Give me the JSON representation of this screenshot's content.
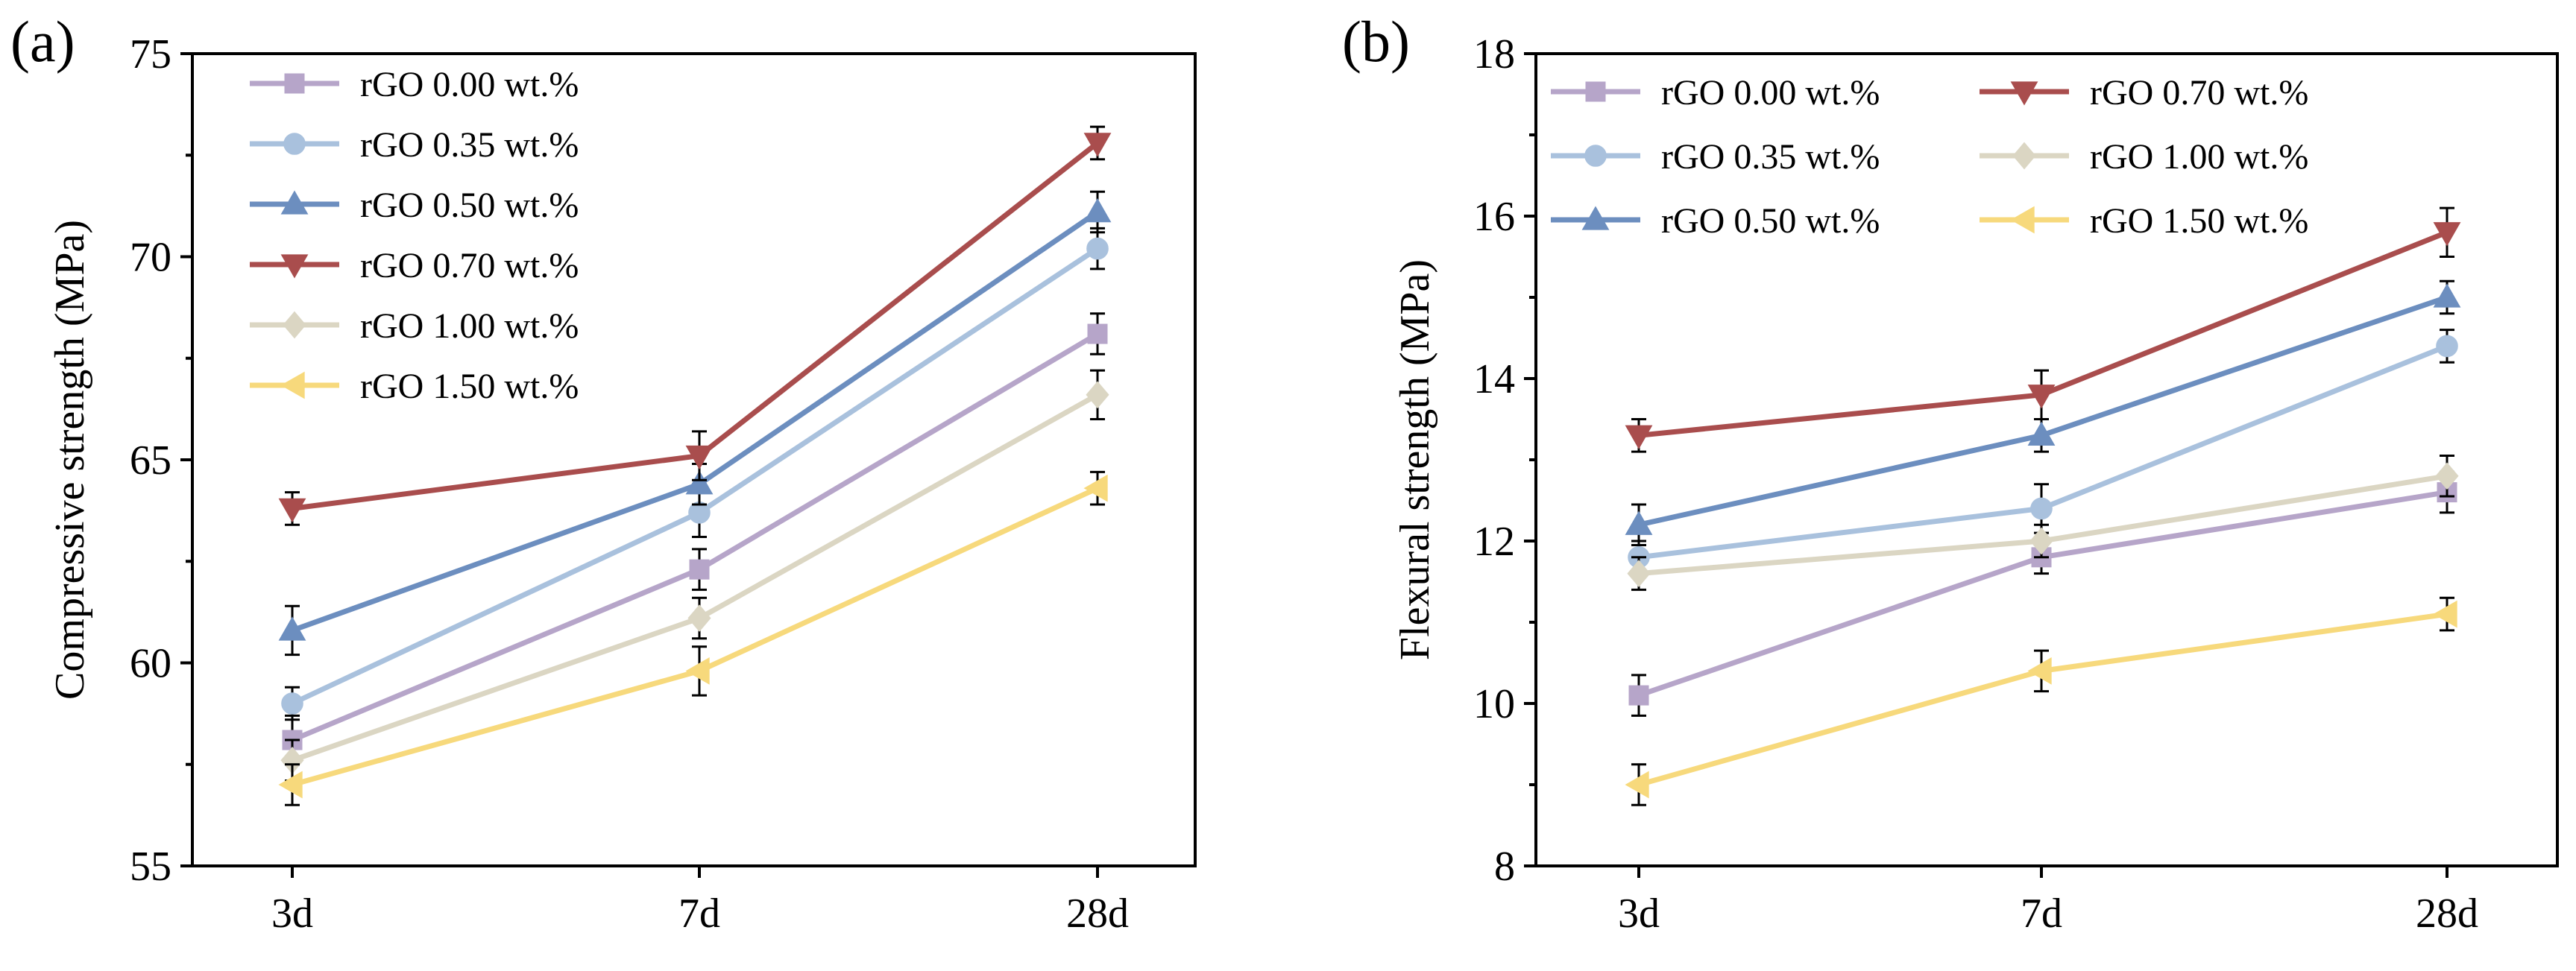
{
  "chart_data": [
    {
      "type": "line",
      "panel_label": "(a)",
      "categories": [
        "3d",
        "7d",
        "28d"
      ],
      "ylabel": "Compressive strength (MPa)",
      "xlabel": "",
      "ylim": [
        55,
        75
      ],
      "yticks": [
        55,
        60,
        65,
        70,
        75
      ],
      "legend_position": "top-left",
      "series": [
        {
          "name": "rGO 0.00 wt.%",
          "color": "#b6a5c9",
          "marker": "square",
          "values": [
            58.1,
            62.3,
            68.1
          ],
          "errors": [
            0.6,
            0.5,
            0.5
          ]
        },
        {
          "name": "rGO 0.35 wt.%",
          "color": "#a9c1dd",
          "marker": "circle",
          "values": [
            59.0,
            63.7,
            70.2
          ],
          "errors": [
            0.4,
            0.6,
            0.5
          ]
        },
        {
          "name": "rGO 0.50 wt.%",
          "color": "#6c8ebf",
          "marker": "triangle-up",
          "values": [
            60.8,
            64.4,
            71.1
          ],
          "errors": [
            0.6,
            0.5,
            0.5
          ]
        },
        {
          "name": "rGO 0.70 wt.%",
          "color": "#a94d4d",
          "marker": "triangle-down",
          "values": [
            63.8,
            65.1,
            72.8
          ],
          "errors": [
            0.4,
            0.6,
            0.4
          ]
        },
        {
          "name": "rGO 1.00 wt.%",
          "color": "#dbd6c3",
          "marker": "diamond",
          "values": [
            57.6,
            61.1,
            66.6
          ],
          "errors": [
            0.5,
            0.5,
            0.6
          ]
        },
        {
          "name": "rGO 1.50 wt.%",
          "color": "#f7d97c",
          "marker": "triangle-left",
          "values": [
            57.0,
            59.8,
            64.3
          ],
          "errors": [
            0.5,
            0.6,
            0.4
          ]
        }
      ]
    },
    {
      "type": "line",
      "panel_label": "(b)",
      "categories": [
        "3d",
        "7d",
        "28d"
      ],
      "ylabel": "Flexural strength (MPa)",
      "xlabel": "",
      "ylim": [
        8,
        18
      ],
      "yticks": [
        8,
        10,
        12,
        14,
        16,
        18
      ],
      "legend_position": "top-left",
      "series": [
        {
          "name": "rGO 0.00 wt.%",
          "color": "#b6a5c9",
          "marker": "square",
          "values": [
            10.1,
            11.8,
            12.6
          ],
          "errors": [
            0.25,
            0.2,
            0.25
          ]
        },
        {
          "name": "rGO 0.35 wt.%",
          "color": "#a9c1dd",
          "marker": "circle",
          "values": [
            11.8,
            12.4,
            14.4
          ],
          "errors": [
            0.2,
            0.3,
            0.2
          ]
        },
        {
          "name": "rGO 0.50 wt.%",
          "color": "#6c8ebf",
          "marker": "triangle-up",
          "values": [
            12.2,
            13.3,
            15.0
          ],
          "errors": [
            0.25,
            0.2,
            0.2
          ]
        },
        {
          "name": "rGO 0.70 wt.%",
          "color": "#a94d4d",
          "marker": "triangle-down",
          "values": [
            13.3,
            13.8,
            15.8
          ],
          "errors": [
            0.2,
            0.3,
            0.3
          ]
        },
        {
          "name": "rGO 1.00 wt.%",
          "color": "#dbd6c3",
          "marker": "diamond",
          "values": [
            11.6,
            12.0,
            12.8
          ],
          "errors": [
            0.2,
            0.2,
            0.25
          ]
        },
        {
          "name": "rGO 1.50 wt.%",
          "color": "#f7d97c",
          "marker": "triangle-left",
          "values": [
            9.0,
            10.4,
            11.1
          ],
          "errors": [
            0.25,
            0.25,
            0.2
          ]
        }
      ]
    }
  ]
}
